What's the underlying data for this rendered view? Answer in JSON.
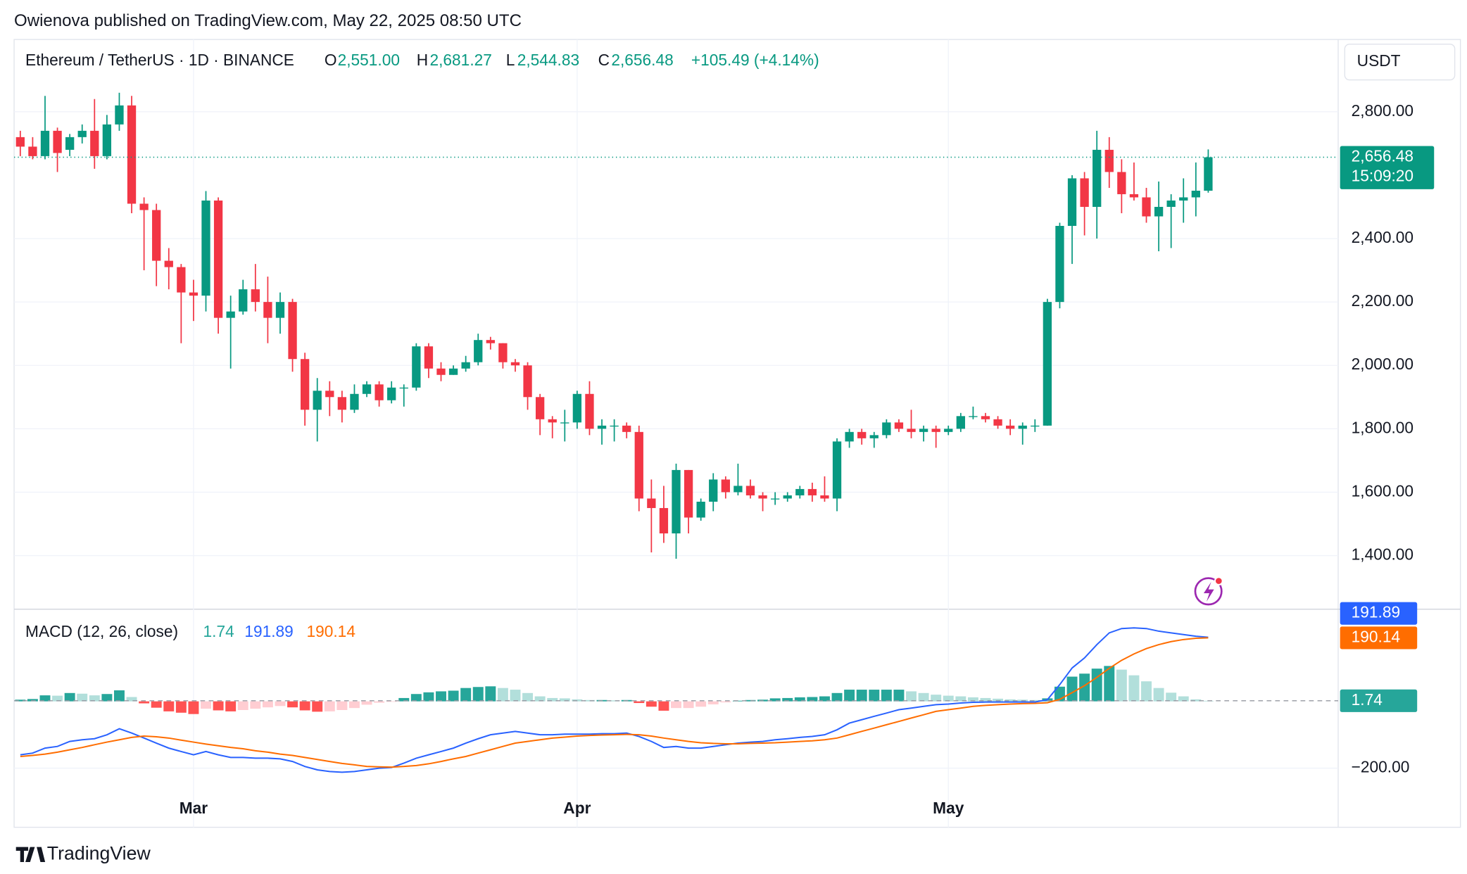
{
  "header": {
    "publisher": "Owienova published on TradingView.com, May 22, 2025 08:50 UTC"
  },
  "chart_data": [
    {
      "type": "candlestick",
      "title": "Ethereum / TetherUS · 1D · BINANCE",
      "ohlc_labels": {
        "open_letter": "O",
        "open": "2,551.00",
        "high_letter": "H",
        "high": "2,681.27",
        "low_letter": "L",
        "low": "2,544.83",
        "close_letter": "C",
        "close": "2,656.48",
        "change": "+105.49 (+4.14%)"
      },
      "currency": "USDT",
      "last_price_label": "2,656.48",
      "countdown": "15:09:20",
      "categories": [
        null,
        null,
        null,
        null,
        null,
        null,
        null,
        null,
        null,
        null,
        null,
        null,
        null,
        null,
        "Mar",
        null,
        null,
        null,
        null,
        null,
        null,
        null,
        null,
        null,
        null,
        null,
        null,
        null,
        null,
        null,
        null,
        null,
        null,
        null,
        null,
        null,
        null,
        null,
        null,
        null,
        null,
        null,
        null,
        null,
        null,
        "Apr",
        null,
        null,
        null,
        null,
        null,
        null,
        null,
        null,
        null,
        null,
        null,
        null,
        null,
        null,
        null,
        null,
        null,
        null,
        null,
        null,
        null,
        null,
        null,
        null,
        null,
        null,
        null,
        null,
        null,
        "May",
        null,
        null,
        null,
        null,
        null,
        null,
        null,
        null,
        null,
        null,
        null,
        null,
        null,
        null,
        null,
        null,
        null,
        null,
        null,
        null,
        null
      ],
      "open": [
        2720,
        2690,
        2660,
        2740,
        2680,
        2720,
        2740,
        2660,
        2760,
        2820,
        2510,
        2490,
        2330,
        2310,
        2230,
        2220,
        2520,
        2150,
        2170,
        2240,
        2200,
        2150,
        2200,
        2020,
        1860,
        1920,
        1900,
        1860,
        1910,
        1940,
        1890,
        1930,
        1930,
        2060,
        1990,
        1970,
        1990,
        2010,
        2080,
        2070,
        2010,
        2000,
        1900,
        1830,
        1820,
        1820,
        1910,
        1800,
        1810,
        1810,
        1790,
        1580,
        1550,
        1470,
        1670,
        1520,
        1570,
        1640,
        1600,
        1620,
        1590,
        1580,
        1580,
        1590,
        1610,
        1590,
        1580,
        1760,
        1790,
        1770,
        1780,
        1820,
        1800,
        1790,
        1800,
        1790,
        1800,
        1840,
        1840,
        1830,
        1810,
        1800,
        1810,
        1810,
        2200,
        2440,
        2590,
        2500,
        2680,
        2610,
        2540,
        2530,
        2470,
        2500,
        2520,
        2530,
        2551
      ],
      "high": [
        2740,
        2720,
        2850,
        2750,
        2730,
        2760,
        2840,
        2790,
        2860,
        2850,
        2530,
        2510,
        2370,
        2320,
        2270,
        2550,
        2530,
        2220,
        2270,
        2320,
        2280,
        2230,
        2210,
        2040,
        1960,
        1950,
        1920,
        1940,
        1950,
        1950,
        1950,
        1940,
        2070,
        2070,
        2010,
        2000,
        2030,
        2100,
        2090,
        2070,
        2020,
        2010,
        1910,
        1840,
        1860,
        1920,
        1950,
        1830,
        1830,
        1820,
        1810,
        1640,
        1620,
        1690,
        1670,
        1580,
        1660,
        1650,
        1690,
        1640,
        1600,
        1600,
        1600,
        1620,
        1630,
        1650,
        1770,
        1800,
        1800,
        1790,
        1830,
        1830,
        1860,
        1810,
        1810,
        1810,
        1850,
        1870,
        1850,
        1840,
        1830,
        1820,
        1830,
        2210,
        2450,
        2600,
        2610,
        2740,
        2720,
        2650,
        2640,
        2560,
        2580,
        2540,
        2590,
        2640,
        2681.27
      ],
      "low": [
        2660,
        2650,
        2650,
        2610,
        2660,
        2700,
        2620,
        2650,
        2740,
        2480,
        2300,
        2250,
        2240,
        2070,
        2140,
        2170,
        2100,
        1990,
        2160,
        2170,
        2070,
        2100,
        1980,
        1810,
        1760,
        1840,
        1820,
        1850,
        1900,
        1870,
        1880,
        1870,
        1920,
        1960,
        1950,
        1970,
        1980,
        2000,
        2050,
        1990,
        1980,
        1860,
        1780,
        1770,
        1760,
        1800,
        1780,
        1750,
        1760,
        1770,
        1540,
        1410,
        1440,
        1390,
        1470,
        1510,
        1540,
        1580,
        1590,
        1580,
        1540,
        1560,
        1570,
        1580,
        1570,
        1570,
        1540,
        1740,
        1750,
        1740,
        1770,
        1790,
        1770,
        1760,
        1740,
        1780,
        1790,
        1830,
        1820,
        1800,
        1780,
        1750,
        1790,
        1810,
        2180,
        2320,
        2410,
        2400,
        2560,
        2480,
        2520,
        2450,
        2360,
        2370,
        2450,
        2470,
        2544.83
      ],
      "close": [
        2690,
        2660,
        2740,
        2670,
        2720,
        2740,
        2660,
        2760,
        2820,
        2510,
        2490,
        2330,
        2310,
        2230,
        2220,
        2520,
        2150,
        2170,
        2240,
        2200,
        2150,
        2200,
        2020,
        1860,
        1920,
        1900,
        1860,
        1910,
        1940,
        1890,
        1930,
        1930,
        2060,
        1990,
        1970,
        1990,
        2010,
        2080,
        2070,
        2010,
        2000,
        1900,
        1830,
        1820,
        1820,
        1910,
        1800,
        1810,
        1810,
        1790,
        1580,
        1550,
        1470,
        1670,
        1520,
        1570,
        1640,
        1600,
        1620,
        1590,
        1580,
        1580,
        1590,
        1610,
        1590,
        1580,
        1760,
        1790,
        1770,
        1780,
        1820,
        1800,
        1790,
        1800,
        1790,
        1800,
        1840,
        1840,
        1830,
        1810,
        1800,
        1810,
        1810,
        2200,
        2440,
        2590,
        2500,
        2680,
        2610,
        2540,
        2530,
        2470,
        2500,
        2520,
        2530,
        2551,
        2656.48
      ],
      "up_color": "#089981",
      "down_color": "#f23645",
      "ylim": [
        1231,
        3028
      ],
      "yticks": [
        {
          "value": 1400,
          "label": "1,400.00"
        },
        {
          "value": 1600,
          "label": "1,600.00"
        },
        {
          "value": 1800,
          "label": "1,800.00"
        },
        {
          "value": 2000,
          "label": "2,000.00"
        },
        {
          "value": 2200,
          "label": "2,200.00"
        },
        {
          "value": 2400,
          "label": "2,400.00"
        },
        {
          "value": 2800,
          "label": "2,800.00"
        }
      ],
      "grid": true
    },
    {
      "type": "macd",
      "title": "MACD (12, 26, close)",
      "histogram": {
        "values": [
          5,
          7,
          18,
          17,
          25,
          23,
          18,
          22,
          33,
          13,
          -6,
          -19,
          -30,
          -34,
          -38,
          -22,
          -27,
          -30,
          -26,
          -22,
          -18,
          -14,
          -18,
          -27,
          -31,
          -30,
          -26,
          -20,
          -10,
          -4,
          -1,
          10,
          22,
          27,
          30,
          32,
          40,
          43,
          45,
          40,
          35,
          25,
          15,
          10,
          9,
          6,
          4,
          4,
          3,
          4,
          -5,
          -16,
          -28,
          -20,
          -20,
          -16,
          -9,
          -3,
          2,
          4,
          5,
          9,
          10,
          12,
          13,
          15,
          25,
          35,
          35,
          35,
          35,
          35,
          30,
          25,
          20,
          17,
          15,
          12,
          10,
          8,
          6,
          5,
          4,
          9,
          44,
          74,
          83,
          98,
          106,
          95,
          78,
          60,
          40,
          26,
          15,
          6,
          1.74
        ],
        "value_label": "1.74",
        "colors": {
          "up_strong": "#26a69a",
          "up_weak": "#b2dfdb",
          "down_strong": "#ff5252",
          "down_weak": "#ffcdd2"
        }
      },
      "macd": {
        "values": [
          -160,
          -155,
          -140,
          -135,
          -120,
          -115,
          -112,
          -100,
          -82,
          -95,
          -110,
          -125,
          -140,
          -150,
          -160,
          -150,
          -160,
          -168,
          -168,
          -170,
          -170,
          -172,
          -180,
          -195,
          -205,
          -210,
          -212,
          -210,
          -205,
          -200,
          -198,
          -185,
          -170,
          -160,
          -150,
          -140,
          -125,
          -112,
          -100,
          -95,
          -90,
          -95,
          -100,
          -100,
          -98,
          -98,
          -98,
          -97,
          -97,
          -95,
          -105,
          -120,
          -138,
          -135,
          -140,
          -140,
          -135,
          -130,
          -125,
          -122,
          -120,
          -115,
          -112,
          -108,
          -105,
          -100,
          -85,
          -65,
          -55,
          -45,
          -35,
          -25,
          -20,
          -15,
          -10,
          -8,
          -5,
          -3,
          -2,
          -2,
          -2,
          -2,
          -2,
          5,
          50,
          100,
          130,
          170,
          205,
          218,
          220,
          218,
          210,
          205,
          200,
          195,
          191.89
        ],
        "color": "#2962ff",
        "value_label": "191.89"
      },
      "signal": {
        "values": [
          -165,
          -162,
          -158,
          -152,
          -145,
          -138,
          -130,
          -122,
          -115,
          -108,
          -104,
          -106,
          -110,
          -116,
          -122,
          -128,
          -133,
          -138,
          -142,
          -148,
          -152,
          -158,
          -162,
          -168,
          -174,
          -180,
          -186,
          -190,
          -195,
          -196,
          -197,
          -195,
          -192,
          -187,
          -180,
          -172,
          -165,
          -155,
          -145,
          -135,
          -125,
          -120,
          -115,
          -110,
          -107,
          -104,
          -102,
          -101,
          -100,
          -99,
          -100,
          -104,
          -110,
          -115,
          -120,
          -124,
          -126,
          -127,
          -127,
          -126,
          -125,
          -124,
          -122,
          -120,
          -118,
          -115,
          -110,
          -100,
          -90,
          -80,
          -70,
          -60,
          -50,
          -40,
          -30,
          -25,
          -20,
          -15,
          -12,
          -10,
          -8,
          -7,
          -6,
          -4,
          6,
          26,
          47,
          72,
          99,
          123,
          142,
          158,
          170,
          179,
          185,
          189,
          190.14
        ],
        "color": "#ff6d00",
        "value_label": "190.14"
      },
      "ylim": [
        -377,
        276
      ],
      "yticks": [
        {
          "value": -200,
          "label": "−200.00"
        }
      ]
    }
  ],
  "footer": {
    "brand": "TradingView"
  }
}
